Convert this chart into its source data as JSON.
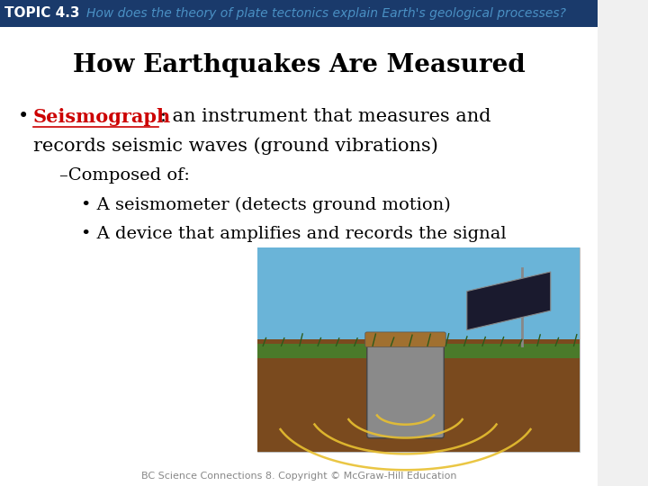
{
  "bg_color": "#f0f0f0",
  "header_bar_color": "#1a3a6b",
  "header_bar_height": 0.055,
  "topic_label": "TOPIC 4.3",
  "topic_label_color": "#ffffff",
  "topic_label_fontsize": 11,
  "header_question": "How does the theory of plate tectonics explain Earth's geological processes?",
  "header_question_color": "#4a90c4",
  "header_question_fontsize": 10,
  "content_bg": "#ffffff",
  "main_title": "How Earthquakes Are Measured",
  "main_title_fontsize": 20,
  "main_title_color": "#000000",
  "bullet1_keyword": "Seismograph",
  "bullet1_keyword_color": "#cc0000",
  "bullet1_fontsize": 15,
  "bullet1_rest": ": an instrument that measures and",
  "bullet1_line2": "records seismic waves (ground vibrations)",
  "subbullet1": "–Composed of:",
  "subbullet1_fontsize": 14,
  "subbullet2": "• A seismometer (detects ground motion)",
  "subbullet3": "• A device that amplifies and records the signal",
  "subbullet_fontsize": 14,
  "footer_text": "BC Science Connections 8. Copyright © McGraw-Hill Education",
  "footer_color": "#888888",
  "footer_fontsize": 8,
  "text_color": "#000000"
}
